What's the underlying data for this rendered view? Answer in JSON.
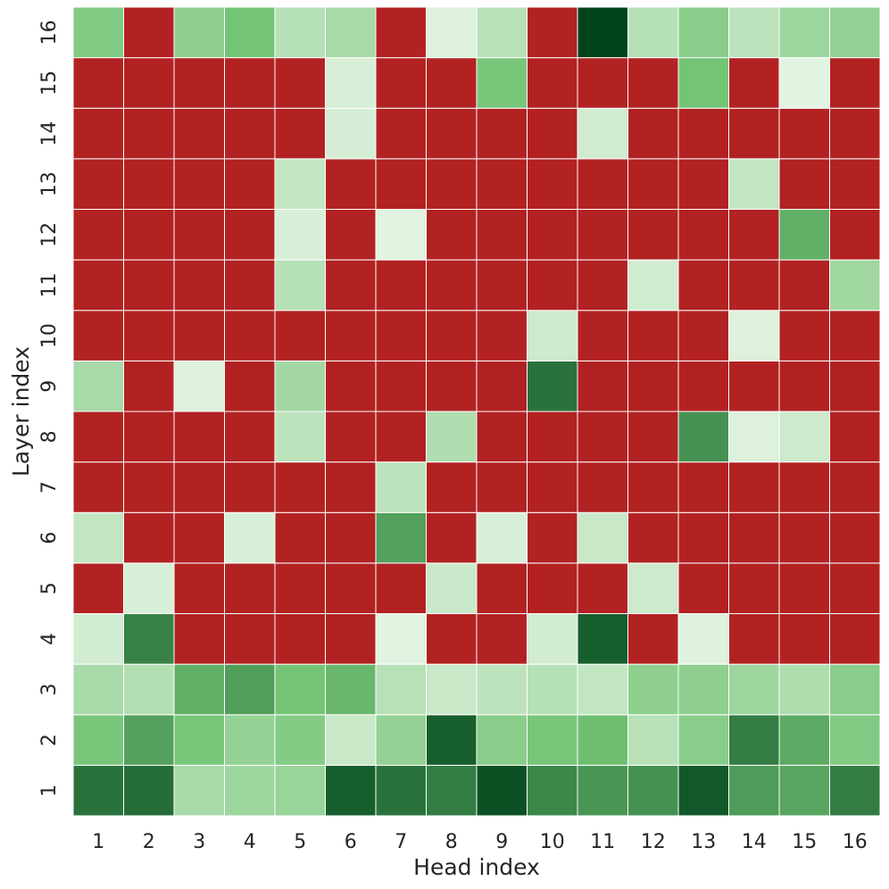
{
  "chart_data": {
    "type": "heatmap",
    "title": "",
    "xlabel": "Head index",
    "ylabel": "Layer index",
    "x_categories": [
      "1",
      "2",
      "3",
      "4",
      "5",
      "6",
      "7",
      "8",
      "9",
      "10",
      "11",
      "12",
      "13",
      "14",
      "15",
      "16"
    ],
    "y_categories": [
      "1",
      "2",
      "3",
      "4",
      "5",
      "6",
      "7",
      "8",
      "9",
      "10",
      "11",
      "12",
      "13",
      "14",
      "15",
      "16"
    ],
    "colormap": {
      "negative": "#b22222",
      "scale_low": "#f7fcf5",
      "scale_mid": "#74c476",
      "scale_high": "#00441b"
    },
    "grid": true,
    "legend": "none",
    "value_scale": "0-1 green intensity; -1 = red cell",
    "values": [
      [
        0.82,
        0.84,
        0.3,
        0.34,
        0.36,
        0.9,
        0.82,
        0.78,
        0.95,
        0.74,
        0.68,
        0.7,
        0.92,
        0.66,
        0.62,
        0.78
      ],
      [
        0.48,
        0.64,
        0.48,
        0.38,
        0.44,
        0.18,
        0.38,
        0.9,
        0.42,
        0.48,
        0.52,
        0.24,
        0.42,
        0.78,
        0.6,
        0.45
      ],
      [
        0.3,
        0.26,
        0.58,
        0.65,
        0.5,
        0.55,
        0.24,
        0.18,
        0.22,
        0.25,
        0.2,
        0.4,
        0.4,
        0.34,
        0.28,
        0.42
      ],
      [
        0.14,
        0.76,
        -1,
        -1,
        -1,
        -1,
        0.08,
        -1,
        -1,
        0.14,
        0.9,
        -1,
        0.09,
        -1,
        -1,
        -1
      ],
      [
        -1,
        0.12,
        -1,
        -1,
        -1,
        -1,
        -1,
        0.17,
        -1,
        -1,
        -1,
        0.16,
        -1,
        -1,
        -1,
        -1
      ],
      [
        0.2,
        -1,
        -1,
        0.12,
        -1,
        -1,
        0.64,
        -1,
        0.12,
        -1,
        0.18,
        -1,
        -1,
        -1,
        -1,
        -1
      ],
      [
        -1,
        -1,
        -1,
        -1,
        -1,
        -1,
        0.22,
        -1,
        -1,
        -1,
        -1,
        -1,
        -1,
        -1,
        -1,
        -1
      ],
      [
        -1,
        -1,
        -1,
        -1,
        0.22,
        -1,
        -1,
        0.27,
        -1,
        -1,
        -1,
        -1,
        0.7,
        0.1,
        0.16,
        -1
      ],
      [
        0.3,
        -1,
        0.1,
        -1,
        0.32,
        -1,
        -1,
        -1,
        -1,
        0.82,
        -1,
        -1,
        -1,
        -1,
        -1,
        -1
      ],
      [
        -1,
        -1,
        -1,
        -1,
        -1,
        -1,
        -1,
        -1,
        -1,
        0.16,
        -1,
        -1,
        -1,
        0.1,
        -1,
        -1
      ],
      [
        -1,
        -1,
        -1,
        -1,
        0.25,
        -1,
        -1,
        -1,
        -1,
        -1,
        -1,
        0.14,
        -1,
        -1,
        -1,
        0.33
      ],
      [
        -1,
        -1,
        -1,
        -1,
        0.12,
        -1,
        0.08,
        -1,
        -1,
        -1,
        -1,
        -1,
        -1,
        -1,
        0.58,
        -1
      ],
      [
        -1,
        -1,
        -1,
        -1,
        0.2,
        -1,
        -1,
        -1,
        -1,
        -1,
        -1,
        -1,
        -1,
        0.2,
        -1,
        -1
      ],
      [
        -1,
        -1,
        -1,
        -1,
        -1,
        0.13,
        -1,
        -1,
        -1,
        -1,
        0.15,
        -1,
        -1,
        -1,
        -1,
        -1
      ],
      [
        -1,
        -1,
        -1,
        -1,
        -1,
        0.12,
        -1,
        -1,
        0.48,
        -1,
        -1,
        -1,
        0.5,
        -1,
        0.08,
        -1
      ],
      [
        0.45,
        -1,
        0.4,
        0.5,
        0.25,
        0.3,
        -1,
        0.1,
        0.24,
        -1,
        1.0,
        0.25,
        0.42,
        0.22,
        0.34,
        0.38
      ]
    ]
  }
}
